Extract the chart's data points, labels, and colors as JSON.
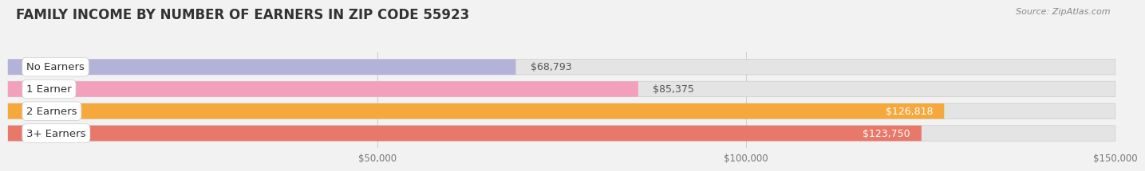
{
  "title": "FAMILY INCOME BY NUMBER OF EARNERS IN ZIP CODE 55923",
  "source": "Source: ZipAtlas.com",
  "categories": [
    "No Earners",
    "1 Earner",
    "2 Earners",
    "3+ Earners"
  ],
  "values": [
    68793,
    85375,
    126818,
    123750
  ],
  "bar_colors": [
    "#b3b3d9",
    "#f2a0bc",
    "#f5a93c",
    "#e8796a"
  ],
  "label_inside_threshold": 100000,
  "label_colors_inside": [
    "white",
    "white",
    "white",
    "white"
  ],
  "label_colors_outside": [
    "#555555",
    "#555555",
    "#555555",
    "#555555"
  ],
  "xlim_min": 0,
  "xlim_max": 150000,
  "xticks": [
    50000,
    100000,
    150000
  ],
  "xtick_labels": [
    "$50,000",
    "$100,000",
    "$150,000"
  ],
  "background_color": "#f2f2f2",
  "bar_bg_color": "#e4e4e4",
  "bar_bg_color2": "#ebebeb",
  "title_fontsize": 12,
  "source_fontsize": 8,
  "label_fontsize": 9,
  "category_fontsize": 9.5
}
